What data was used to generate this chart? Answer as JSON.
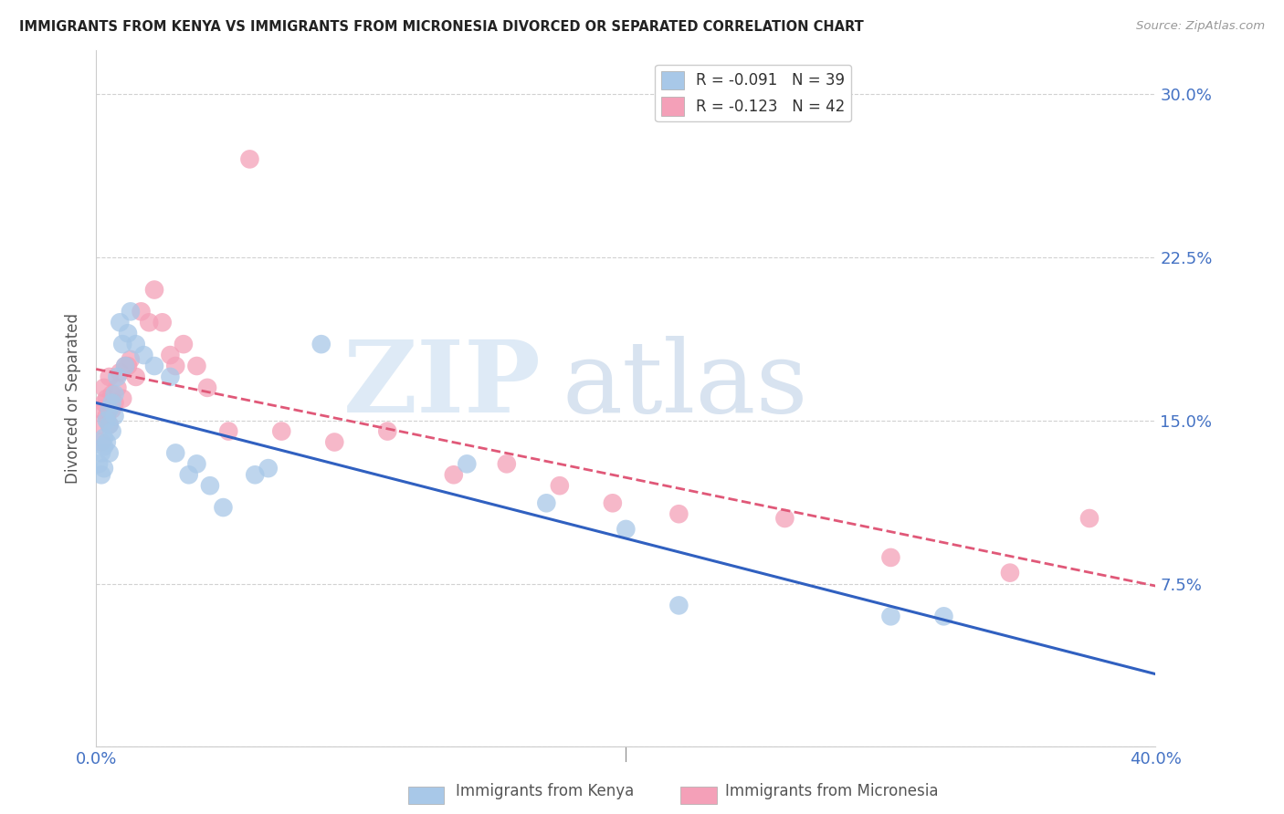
{
  "title": "IMMIGRANTS FROM KENYA VS IMMIGRANTS FROM MICRONESIA DIVORCED OR SEPARATED CORRELATION CHART",
  "source": "Source: ZipAtlas.com",
  "ylabel": "Divorced or Separated",
  "xmin": 0.0,
  "xmax": 0.4,
  "ymin": 0.0,
  "ymax": 0.32,
  "yticks": [
    0.0,
    0.075,
    0.15,
    0.225,
    0.3
  ],
  "ytick_labels": [
    "",
    "7.5%",
    "15.0%",
    "22.5%",
    "30.0%"
  ],
  "xticks": [
    0.0,
    0.1,
    0.2,
    0.3,
    0.4
  ],
  "xtick_labels": [
    "0.0%",
    "",
    "",
    "",
    "40.0%"
  ],
  "kenya_r": -0.091,
  "kenya_n": 39,
  "micronesia_r": -0.123,
  "micronesia_n": 42,
  "kenya_color": "#a8c8e8",
  "micronesia_color": "#f4a0b8",
  "kenya_line_color": "#3060c0",
  "micronesia_line_color": "#e05878",
  "kenya_x": [
    0.001,
    0.002,
    0.002,
    0.003,
    0.003,
    0.003,
    0.004,
    0.004,
    0.005,
    0.005,
    0.005,
    0.006,
    0.006,
    0.007,
    0.007,
    0.008,
    0.009,
    0.01,
    0.011,
    0.012,
    0.013,
    0.015,
    0.018,
    0.022,
    0.028,
    0.03,
    0.035,
    0.038,
    0.043,
    0.048,
    0.06,
    0.065,
    0.085,
    0.14,
    0.17,
    0.2,
    0.22,
    0.3,
    0.32
  ],
  "kenya_y": [
    0.13,
    0.135,
    0.125,
    0.138,
    0.142,
    0.128,
    0.15,
    0.14,
    0.155,
    0.148,
    0.135,
    0.158,
    0.145,
    0.162,
    0.152,
    0.17,
    0.195,
    0.185,
    0.175,
    0.19,
    0.2,
    0.185,
    0.18,
    0.175,
    0.17,
    0.135,
    0.125,
    0.13,
    0.12,
    0.11,
    0.125,
    0.128,
    0.185,
    0.13,
    0.112,
    0.1,
    0.065,
    0.06,
    0.06
  ],
  "micronesia_x": [
    0.001,
    0.002,
    0.002,
    0.003,
    0.003,
    0.004,
    0.004,
    0.005,
    0.005,
    0.006,
    0.006,
    0.007,
    0.008,
    0.009,
    0.01,
    0.011,
    0.012,
    0.013,
    0.015,
    0.017,
    0.02,
    0.022,
    0.025,
    0.028,
    0.03,
    0.033,
    0.038,
    0.042,
    0.05,
    0.058,
    0.07,
    0.09,
    0.11,
    0.135,
    0.155,
    0.175,
    0.195,
    0.22,
    0.26,
    0.3,
    0.345,
    0.375
  ],
  "micronesia_y": [
    0.148,
    0.155,
    0.14,
    0.158,
    0.165,
    0.16,
    0.152,
    0.17,
    0.148,
    0.162,
    0.155,
    0.158,
    0.165,
    0.172,
    0.16,
    0.175,
    0.175,
    0.178,
    0.17,
    0.2,
    0.195,
    0.21,
    0.195,
    0.18,
    0.175,
    0.185,
    0.175,
    0.165,
    0.145,
    0.27,
    0.145,
    0.14,
    0.145,
    0.125,
    0.13,
    0.12,
    0.112,
    0.107,
    0.105,
    0.087,
    0.08,
    0.105
  ]
}
